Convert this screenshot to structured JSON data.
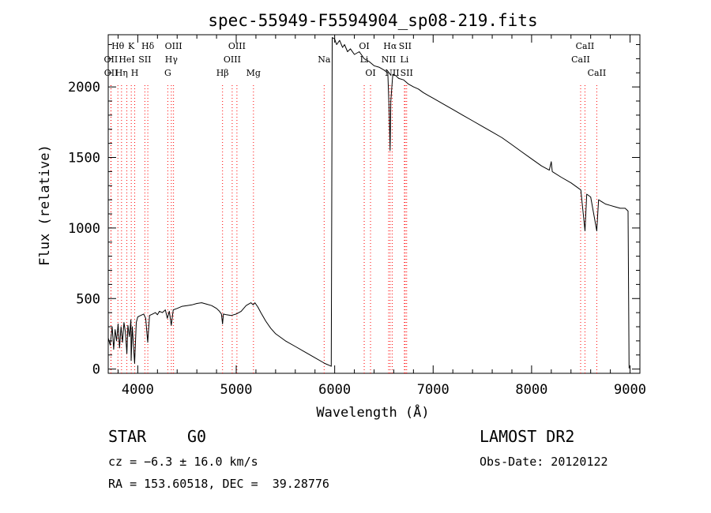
{
  "chart_data": {
    "type": "line",
    "title": "spec-55949-F5594904_sp08-219.fits",
    "xlabel": "Wavelength (Å)",
    "ylabel": "Flux (relative)",
    "xlim": [
      3700,
      9100
    ],
    "ylim": [
      -30,
      2370
    ],
    "xticks": [
      4000,
      5000,
      6000,
      7000,
      8000,
      9000
    ],
    "yticks": [
      0,
      500,
      1000,
      1500,
      2000
    ],
    "grid": false,
    "series": [
      {
        "color": "#000000",
        "points": [
          [
            3700,
            220
          ],
          [
            3720,
            170
          ],
          [
            3740,
            300
          ],
          [
            3755,
            140
          ],
          [
            3770,
            280
          ],
          [
            3785,
            200
          ],
          [
            3800,
            320
          ],
          [
            3815,
            150
          ],
          [
            3830,
            300
          ],
          [
            3845,
            190
          ],
          [
            3860,
            330
          ],
          [
            3875,
            260
          ],
          [
            3889,
            110
          ],
          [
            3900,
            310
          ],
          [
            3915,
            230
          ],
          [
            3930,
            350
          ],
          [
            3933,
            60
          ],
          [
            3945,
            300
          ],
          [
            3968,
            40
          ],
          [
            3985,
            330
          ],
          [
            4000,
            370
          ],
          [
            4030,
            380
          ],
          [
            4060,
            390
          ],
          [
            4080,
            360
          ],
          [
            4101,
            190
          ],
          [
            4120,
            380
          ],
          [
            4150,
            390
          ],
          [
            4180,
            400
          ],
          [
            4200,
            385
          ],
          [
            4220,
            410
          ],
          [
            4250,
            400
          ],
          [
            4280,
            420
          ],
          [
            4300,
            360
          ],
          [
            4320,
            410
          ],
          [
            4340,
            310
          ],
          [
            4360,
            420
          ],
          [
            4400,
            430
          ],
          [
            4450,
            445
          ],
          [
            4500,
            450
          ],
          [
            4550,
            455
          ],
          [
            4600,
            465
          ],
          [
            4650,
            470
          ],
          [
            4700,
            460
          ],
          [
            4750,
            450
          ],
          [
            4800,
            430
          ],
          [
            4830,
            410
          ],
          [
            4850,
            390
          ],
          [
            4861,
            320
          ],
          [
            4870,
            390
          ],
          [
            4900,
            385
          ],
          [
            4950,
            380
          ],
          [
            5000,
            390
          ],
          [
            5050,
            410
          ],
          [
            5100,
            450
          ],
          [
            5150,
            470
          ],
          [
            5172,
            455
          ],
          [
            5190,
            470
          ],
          [
            5220,
            440
          ],
          [
            5250,
            400
          ],
          [
            5300,
            340
          ],
          [
            5350,
            290
          ],
          [
            5400,
            250
          ],
          [
            5500,
            200
          ],
          [
            5600,
            160
          ],
          [
            5700,
            120
          ],
          [
            5800,
            80
          ],
          [
            5900,
            40
          ],
          [
            5950,
            25
          ],
          [
            5965,
            20
          ],
          [
            5970,
            1100
          ],
          [
            5975,
            2350
          ],
          [
            6000,
            2340
          ],
          [
            6020,
            2300
          ],
          [
            6050,
            2330
          ],
          [
            6080,
            2280
          ],
          [
            6100,
            2300
          ],
          [
            6130,
            2250
          ],
          [
            6160,
            2270
          ],
          [
            6200,
            2230
          ],
          [
            6250,
            2250
          ],
          [
            6300,
            2200
          ],
          [
            6350,
            2180
          ],
          [
            6400,
            2150
          ],
          [
            6450,
            2140
          ],
          [
            6500,
            2120
          ],
          [
            6540,
            2100
          ],
          [
            6555,
            1800
          ],
          [
            6563,
            1550
          ],
          [
            6570,
            1900
          ],
          [
            6590,
            2090
          ],
          [
            6620,
            2080
          ],
          [
            6650,
            2060
          ],
          [
            6700,
            2050
          ],
          [
            6750,
            2020
          ],
          [
            6800,
            2000
          ],
          [
            6850,
            1985
          ],
          [
            6900,
            1960
          ],
          [
            6950,
            1940
          ],
          [
            7000,
            1920
          ],
          [
            7100,
            1880
          ],
          [
            7200,
            1840
          ],
          [
            7300,
            1800
          ],
          [
            7400,
            1760
          ],
          [
            7500,
            1720
          ],
          [
            7600,
            1680
          ],
          [
            7700,
            1640
          ],
          [
            7800,
            1590
          ],
          [
            7900,
            1540
          ],
          [
            8000,
            1490
          ],
          [
            8100,
            1440
          ],
          [
            8180,
            1410
          ],
          [
            8200,
            1470
          ],
          [
            8210,
            1400
          ],
          [
            8300,
            1360
          ],
          [
            8400,
            1320
          ],
          [
            8480,
            1280
          ],
          [
            8500,
            1270
          ],
          [
            8542,
            980
          ],
          [
            8560,
            1240
          ],
          [
            8600,
            1220
          ],
          [
            8662,
            980
          ],
          [
            8680,
            1200
          ],
          [
            8750,
            1170
          ],
          [
            8800,
            1160
          ],
          [
            8850,
            1150
          ],
          [
            8900,
            1140
          ],
          [
            8950,
            1140
          ],
          [
            8980,
            1120
          ],
          [
            8990,
            5
          ]
        ]
      }
    ],
    "line_labels": [
      {
        "name": "Hθ",
        "x": 3798,
        "row": 1,
        "color": "#ff0000"
      },
      {
        "name": "K",
        "x": 3934,
        "row": 1,
        "color": "#ff0000"
      },
      {
        "name": "Hδ",
        "x": 4102,
        "row": 1,
        "color": "#ff0000"
      },
      {
        "name": "OII",
        "x": 3727,
        "row": 2,
        "color": "#ff0000"
      },
      {
        "name": "HeI",
        "x": 3889,
        "row": 2,
        "color": "#ff0000"
      },
      {
        "name": "SII",
        "x": 4072,
        "row": 2,
        "color": "#ff0000"
      },
      {
        "name": "OII",
        "x": 3729,
        "row": 3,
        "color": "#ff0000"
      },
      {
        "name": "Hη",
        "x": 3835,
        "row": 3,
        "color": "#ff0000"
      },
      {
        "name": "H",
        "x": 3969,
        "row": 3,
        "color": "#ff0000"
      },
      {
        "name": "OIII",
        "x": 4363,
        "row": 1,
        "color": "#ff0000"
      },
      {
        "name": "Hγ",
        "x": 4341,
        "row": 2,
        "color": "#ff0000"
      },
      {
        "name": "G",
        "x": 4305,
        "row": 3,
        "color": "#ff0000"
      },
      {
        "name": "OIII",
        "x": 5007,
        "row": 1,
        "color": "#ff0000"
      },
      {
        "name": "OIII",
        "x": 4959,
        "row": 2,
        "color": "#ff0000"
      },
      {
        "name": "Hβ",
        "x": 4861,
        "row": 3,
        "color": "#ff0000"
      },
      {
        "name": "Mg",
        "x": 5175,
        "row": 3,
        "color": "#ff0000"
      },
      {
        "name": "Na",
        "x": 5893,
        "row": 2,
        "color": "#ff0000"
      },
      {
        "name": "OI",
        "x": 6300,
        "row": 1,
        "color": "#ff0000"
      },
      {
        "name": "Li",
        "x": 6300,
        "row": 2,
        "color": "#ff0000"
      },
      {
        "name": "OI",
        "x": 6364,
        "row": 3,
        "color": "#ff0000"
      },
      {
        "name": "Hα",
        "x": 6563,
        "row": 1,
        "color": "#ff0000"
      },
      {
        "name": "SII",
        "x": 6716,
        "row": 1,
        "color": "#ff0000"
      },
      {
        "name": "NII",
        "x": 6548,
        "row": 2,
        "color": "#ff0000"
      },
      {
        "name": "Li",
        "x": 6708,
        "row": 2,
        "color": "#ff0000"
      },
      {
        "name": "NII",
        "x": 6584,
        "row": 3,
        "color": "#ff0000"
      },
      {
        "name": "SII",
        "x": 6731,
        "row": 3,
        "color": "#ff0000"
      },
      {
        "name": "CaII",
        "x": 8542,
        "row": 1,
        "color": "#ff0000"
      },
      {
        "name": "CaII",
        "x": 8498,
        "row": 2,
        "color": "#ff0000"
      },
      {
        "name": "CaII",
        "x": 8662,
        "row": 3,
        "color": "#ff0000"
      }
    ]
  },
  "info": {
    "object_type": "STAR",
    "subclass": "G0",
    "survey": "LAMOST DR2",
    "cz": "cz = −6.3 ± 16.0 km/s",
    "obs_date": "Obs-Date: 20120122",
    "coords": "RA = 153.60518, DEC =  39.28776"
  }
}
